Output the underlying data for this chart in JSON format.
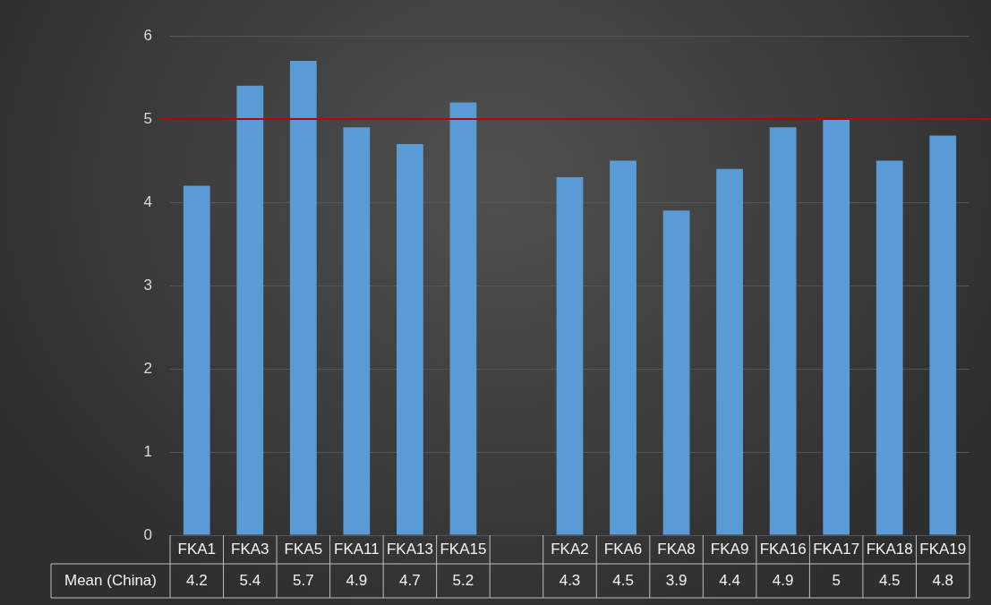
{
  "chart_data": {
    "type": "bar",
    "categories": [
      "FKA1",
      "FKA3",
      "FKA5",
      "FKA11",
      "FKA13",
      "FKA15",
      null,
      "FKA2",
      "FKA6",
      "FKA8",
      "FKA9",
      "FKA16",
      "FKA17",
      "FKA18",
      "FKA19"
    ],
    "series": [
      {
        "name": "Mean (China)",
        "color": "#5b9bd5",
        "values": [
          4.2,
          5.4,
          5.7,
          4.9,
          4.7,
          5.2,
          null,
          4.3,
          4.5,
          3.9,
          4.4,
          4.9,
          5,
          4.5,
          4.8
        ]
      }
    ],
    "ylim": [
      0,
      6
    ],
    "yticks": [
      0,
      1,
      2,
      3,
      4,
      5,
      6
    ],
    "grid": "y",
    "legend": false,
    "data_labels": true,
    "ref_lines": [
      {
        "axis": "y",
        "value": 5,
        "color": "#c00000"
      }
    ]
  }
}
